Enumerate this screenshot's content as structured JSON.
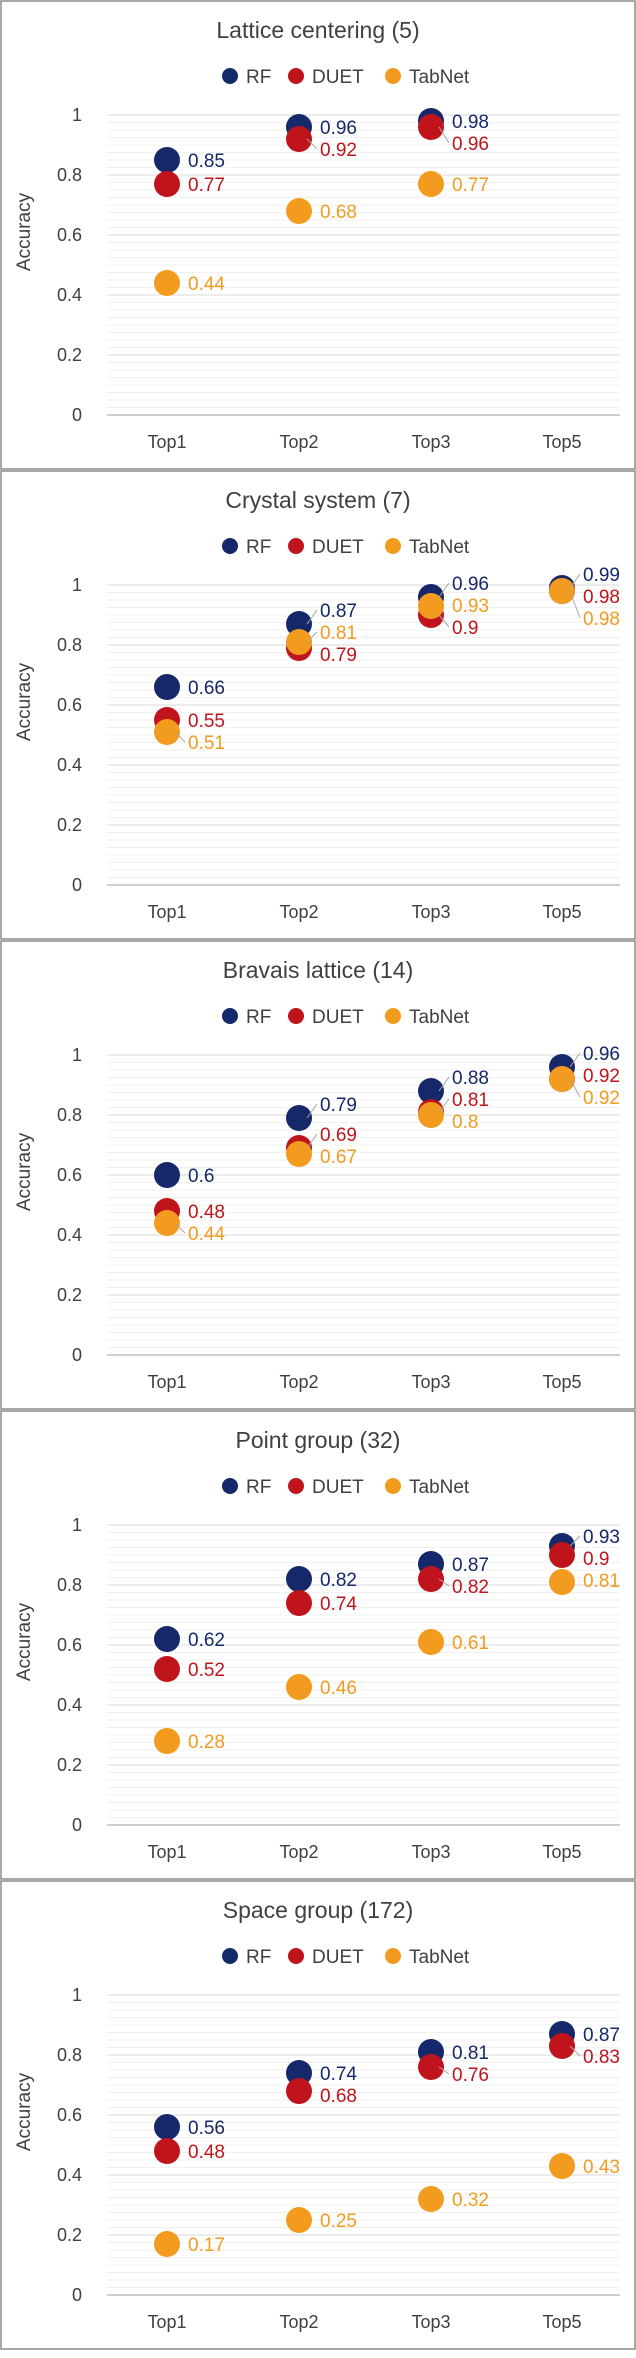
{
  "colors": {
    "RF": "#14286a",
    "DUET": "#c0141c",
    "TabNet": "#f39b1f",
    "grid": "#d9d9d9",
    "axis": "#bfbfbf",
    "text": "#404040",
    "border": "#8c8c8c"
  },
  "chart_data": [
    {
      "type": "scatter",
      "title": "Lattice centering (5)",
      "ylabel": "Accuracy",
      "ylim": [
        0,
        1
      ],
      "yticks": [
        "0",
        "0.2",
        "0.4",
        "0.6",
        "0.8",
        "1"
      ],
      "categories": [
        "Top1",
        "Top2",
        "Top3",
        "Top5"
      ],
      "legend": "top-center",
      "series": [
        {
          "name": "RF",
          "values": [
            0.85,
            0.96,
            0.98,
            null
          ],
          "labels": [
            "0.85",
            "0.96",
            "0.98",
            null
          ]
        },
        {
          "name": "DUET",
          "values": [
            0.77,
            0.92,
            0.96,
            null
          ],
          "labels": [
            "0.77",
            "0.92",
            "0.96",
            null
          ]
        },
        {
          "name": "TabNet",
          "values": [
            0.44,
            0.68,
            0.77,
            null
          ],
          "labels": [
            "0.44",
            "0.68",
            "0.77",
            null
          ]
        }
      ]
    },
    {
      "type": "scatter",
      "title": "Crystal system (7)",
      "ylabel": "Accuracy",
      "ylim": [
        0,
        1
      ],
      "yticks": [
        "0",
        "0.2",
        "0.4",
        "0.6",
        "0.8",
        "1"
      ],
      "categories": [
        "Top1",
        "Top2",
        "Top3",
        "Top5"
      ],
      "legend": "top-center",
      "series": [
        {
          "name": "RF",
          "values": [
            0.66,
            0.87,
            0.96,
            0.99
          ],
          "labels": [
            "0.66",
            "0.87",
            "0.96",
            "0.99"
          ]
        },
        {
          "name": "DUET",
          "values": [
            0.55,
            0.79,
            0.9,
            0.98
          ],
          "labels": [
            "0.55",
            "0.79",
            "0.9",
            "0.98"
          ]
        },
        {
          "name": "TabNet",
          "values": [
            0.51,
            0.81,
            0.93,
            0.98
          ],
          "labels": [
            "0.51",
            "0.81",
            "0.93",
            "0.98"
          ]
        }
      ]
    },
    {
      "type": "scatter",
      "title": "Bravais lattice (14)",
      "ylabel": "Accuracy",
      "ylim": [
        0,
        1
      ],
      "yticks": [
        "0",
        "0.2",
        "0.4",
        "0.6",
        "0.8",
        "1"
      ],
      "categories": [
        "Top1",
        "Top2",
        "Top3",
        "Top5"
      ],
      "legend": "top-center",
      "series": [
        {
          "name": "RF",
          "values": [
            0.6,
            0.79,
            0.88,
            0.96
          ],
          "labels": [
            "0.6",
            "0.79",
            "0.88",
            "0.96"
          ]
        },
        {
          "name": "DUET",
          "values": [
            0.48,
            0.69,
            0.81,
            0.92
          ],
          "labels": [
            "0.48",
            "0.69",
            "0.81",
            "0.92"
          ]
        },
        {
          "name": "TabNet",
          "values": [
            0.44,
            0.67,
            0.8,
            0.92
          ],
          "labels": [
            "0.44",
            "0.67",
            "0.8",
            "0.92"
          ]
        }
      ]
    },
    {
      "type": "scatter",
      "title": "Point group (32)",
      "ylabel": "Accuracy",
      "ylim": [
        0,
        1
      ],
      "yticks": [
        "0",
        "0.2",
        "0.4",
        "0.6",
        "0.8",
        "1"
      ],
      "categories": [
        "Top1",
        "Top2",
        "Top3",
        "Top5"
      ],
      "legend": "top-center",
      "series": [
        {
          "name": "RF",
          "values": [
            0.62,
            0.82,
            0.87,
            0.93
          ],
          "labels": [
            "0.62",
            "0.82",
            "0.87",
            "0.93"
          ]
        },
        {
          "name": "DUET",
          "values": [
            0.52,
            0.74,
            0.82,
            0.9
          ],
          "labels": [
            "0.52",
            "0.74",
            "0.82",
            "0.9"
          ]
        },
        {
          "name": "TabNet",
          "values": [
            0.28,
            0.46,
            0.61,
            0.81
          ],
          "labels": [
            "0.28",
            "0.46",
            "0.61",
            "0.81"
          ]
        }
      ]
    },
    {
      "type": "scatter",
      "title": "Space group (172)",
      "ylabel": "Accuracy",
      "ylim": [
        0,
        1
      ],
      "yticks": [
        "0",
        "0.2",
        "0.4",
        "0.6",
        "0.8",
        "1"
      ],
      "categories": [
        "Top1",
        "Top2",
        "Top3",
        "Top5"
      ],
      "legend": "top-center",
      "series": [
        {
          "name": "RF",
          "values": [
            0.56,
            0.74,
            0.81,
            0.87
          ],
          "labels": [
            "0.56",
            "0.74",
            "0.81",
            "0.87"
          ]
        },
        {
          "name": "DUET",
          "values": [
            0.48,
            0.68,
            0.76,
            0.83
          ],
          "labels": [
            "0.48",
            "0.68",
            "0.76",
            "0.83"
          ]
        },
        {
          "name": "TabNet",
          "values": [
            0.17,
            0.25,
            0.32,
            0.43
          ],
          "labels": [
            "0.17",
            "0.25",
            "0.32",
            "0.43"
          ]
        }
      ]
    }
  ]
}
